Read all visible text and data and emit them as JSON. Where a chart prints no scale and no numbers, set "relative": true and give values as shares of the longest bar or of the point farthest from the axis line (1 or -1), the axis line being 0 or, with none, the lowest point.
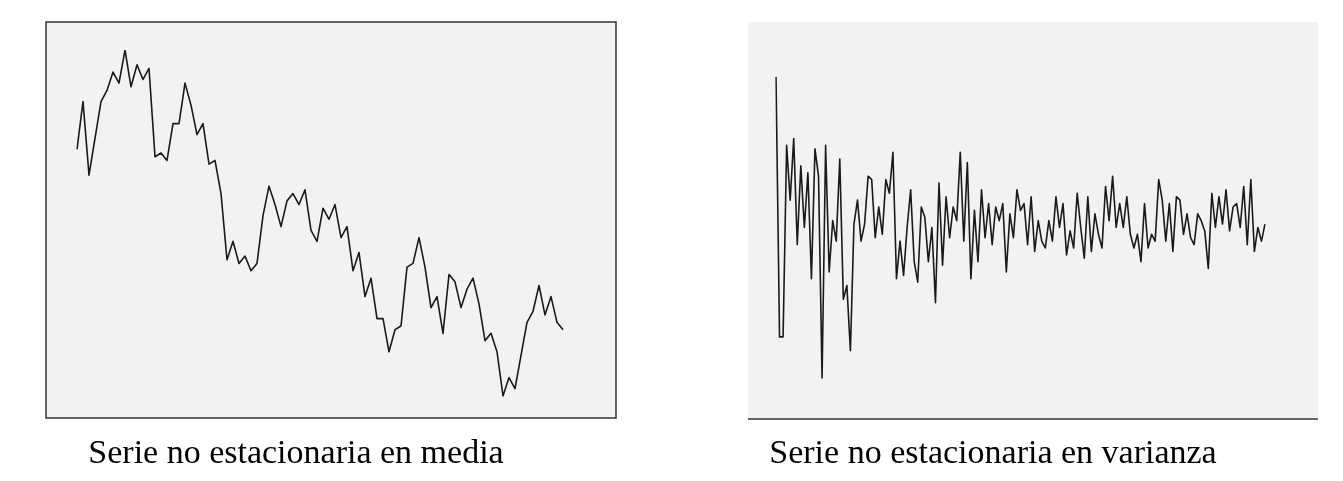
{
  "chart_data": [
    {
      "type": "line",
      "xlabel": "Serie no estacionaria en media",
      "relative": true,
      "categories": [
        null,
        null,
        null,
        null,
        null,
        null,
        null,
        null,
        null,
        null,
        null,
        null,
        null,
        null,
        null,
        null,
        null,
        null,
        null,
        null,
        null,
        null,
        null,
        null,
        null,
        null,
        null,
        null,
        null,
        null,
        null,
        null,
        null,
        null,
        null,
        null,
        null,
        null,
        null,
        null,
        null,
        null,
        null,
        null,
        null,
        null,
        null,
        null,
        null,
        null,
        null,
        null,
        null,
        null,
        null,
        null,
        null,
        null,
        null,
        null,
        null,
        null,
        null,
        null,
        null,
        null,
        null,
        null,
        null,
        null,
        null,
        null,
        null,
        null,
        null,
        null,
        null,
        null,
        null,
        null,
        null,
        null
      ],
      "series": [
        {
          "color": "#1a1a1a",
          "values": [
            0.73,
            0.86,
            0.66,
            0.76,
            0.86,
            0.89,
            0.94,
            0.91,
            1,
            0.9,
            0.96,
            0.92,
            0.95,
            0.71,
            0.72,
            0.7,
            0.8,
            0.8,
            0.91,
            0.85,
            0.77,
            0.8,
            0.69,
            0.7,
            0.61,
            0.43,
            0.48,
            0.42,
            0.44,
            0.4,
            0.42,
            0.55,
            0.63,
            0.58,
            0.52,
            0.59,
            0.61,
            0.58,
            0.62,
            0.51,
            0.48,
            0.57,
            0.54,
            0.58,
            0.49,
            0.52,
            0.4,
            0.45,
            0.33,
            0.38,
            0.27,
            0.27,
            0.18,
            0.24,
            0.25,
            0.41,
            0.42,
            0.49,
            0.41,
            0.3,
            0.33,
            0.23,
            0.39,
            0.37,
            0.3,
            0.35,
            0.38,
            0.31,
            0.21,
            0.23,
            0.18,
            0.06,
            0.11,
            0.08,
            0.17,
            0.26,
            0.29,
            0.36,
            0.28,
            0.33,
            0.26,
            0.24
          ]
        }
      ]
    },
    {
      "type": "line",
      "xlabel": "Serie no estacionaria en varianza",
      "relative": true,
      "categories": [
        null,
        null,
        null,
        null,
        null,
        null,
        null,
        null,
        null,
        null,
        null,
        null,
        null,
        null,
        null,
        null,
        null,
        null,
        null,
        null,
        null,
        null,
        null,
        null,
        null,
        null,
        null,
        null,
        null,
        null,
        null,
        null,
        null,
        null,
        null,
        null,
        null,
        null,
        null,
        null,
        null,
        null,
        null,
        null,
        null,
        null,
        null,
        null,
        null,
        null,
        null,
        null,
        null,
        null,
        null,
        null,
        null,
        null,
        null,
        null,
        null,
        null,
        null,
        null,
        null,
        null,
        null,
        null,
        null,
        null,
        null,
        null,
        null,
        null,
        null,
        null,
        null,
        null,
        null,
        null,
        null,
        null,
        null,
        null,
        null,
        null,
        null,
        null,
        null,
        null,
        null,
        null,
        null,
        null,
        null,
        null,
        null,
        null,
        null,
        null,
        null,
        null,
        null,
        null,
        null,
        null,
        null,
        null,
        null,
        null,
        null,
        null,
        null,
        null,
        null,
        null,
        null,
        null,
        null,
        null,
        null,
        null,
        null,
        null,
        null,
        null,
        null,
        null,
        null,
        null,
        null,
        null,
        null,
        null,
        null,
        null,
        null,
        null,
        null
      ],
      "series": [
        {
          "color": "#1a1a1a",
          "values": [
            1.0,
            0.24,
            0.24,
            0.8,
            0.64,
            0.82,
            0.51,
            0.74,
            0.56,
            0.72,
            0.41,
            0.79,
            0.71,
            0.12,
            0.8,
            0.43,
            0.58,
            0.52,
            0.76,
            0.35,
            0.39,
            0.2,
            0.57,
            0.64,
            0.52,
            0.57,
            0.71,
            0.7,
            0.53,
            0.62,
            0.54,
            0.7,
            0.66,
            0.78,
            0.41,
            0.52,
            0.42,
            0.56,
            0.67,
            0.46,
            0.4,
            0.62,
            0.59,
            0.46,
            0.56,
            0.34,
            0.69,
            0.45,
            0.65,
            0.53,
            0.62,
            0.58,
            0.78,
            0.52,
            0.75,
            0.41,
            0.61,
            0.46,
            0.67,
            0.53,
            0.63,
            0.51,
            0.62,
            0.58,
            0.63,
            0.43,
            0.6,
            0.53,
            0.67,
            0.61,
            0.63,
            0.51,
            0.65,
            0.49,
            0.58,
            0.52,
            0.5,
            0.58,
            0.52,
            0.65,
            0.56,
            0.63,
            0.48,
            0.55,
            0.5,
            0.66,
            0.56,
            0.47,
            0.65,
            0.49,
            0.6,
            0.54,
            0.5,
            0.68,
            0.58,
            0.71,
            0.56,
            0.63,
            0.56,
            0.65,
            0.54,
            0.5,
            0.54,
            0.46,
            0.63,
            0.5,
            0.54,
            0.52,
            0.7,
            0.64,
            0.52,
            0.63,
            0.49,
            0.65,
            0.64,
            0.54,
            0.6,
            0.53,
            0.51,
            0.6,
            0.58,
            0.55,
            0.44,
            0.66,
            0.56,
            0.65,
            0.57,
            0.67,
            0.55,
            0.62,
            0.63,
            0.56,
            0.68,
            0.51,
            0.7,
            0.49,
            0.56,
            0.52,
            0.57
          ]
        }
      ]
    }
  ]
}
